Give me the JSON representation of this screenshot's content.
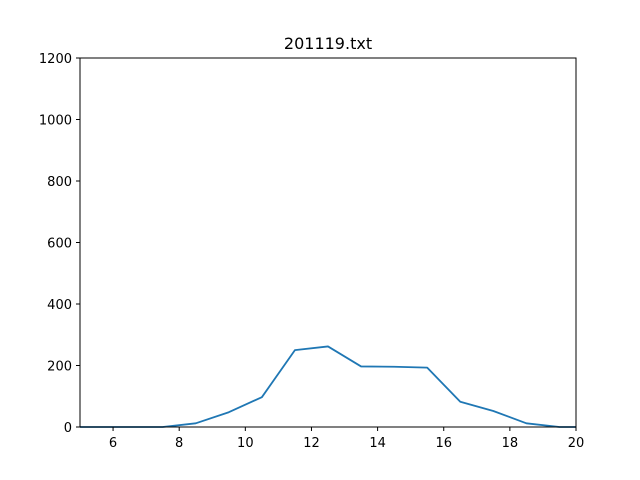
{
  "chart_data": {
    "type": "line",
    "title": "201119.txt",
    "xlabel": "",
    "ylabel": "",
    "xlim": [
      5,
      20
    ],
    "ylim": [
      0,
      1200
    ],
    "xticks": [
      6,
      8,
      10,
      12,
      14,
      16,
      18,
      20
    ],
    "yticks": [
      0,
      200,
      400,
      600,
      800,
      1000,
      1200
    ],
    "grid": false,
    "legend": "none",
    "series": [
      {
        "color": "#1f77b4",
        "x": [
          5,
          5.5,
          6.5,
          7.5,
          8.5,
          9.5,
          10.5,
          11.5,
          12.5,
          13.5,
          14.5,
          15.5,
          16.5,
          17.5,
          18.5,
          19.5,
          20
        ],
        "y": [
          0,
          0,
          0,
          0,
          12,
          48,
          97,
          250,
          262,
          197,
          196,
          193,
          82,
          52,
          12,
          0,
          0
        ]
      }
    ]
  }
}
